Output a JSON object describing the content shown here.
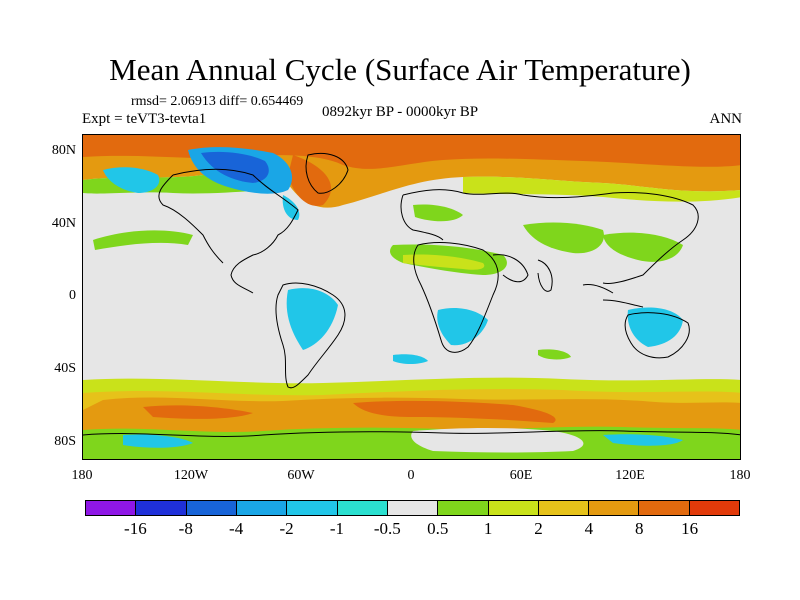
{
  "header": {
    "title": "Mean Annual Cycle (Surface Air Temperature)",
    "stats": "rmsd= 2.06913 diff= 0.654469",
    "experiment": "Expt = teVT3-tevta1",
    "period": "0892kyr BP - 0000kyr BP",
    "season": "ANN"
  },
  "map": {
    "projection": "cylindrical equidistant",
    "lon_range": [
      -180,
      180
    ],
    "lat_range": [
      -90,
      90
    ],
    "ocean_land_neutral_color": "#e6e6e6",
    "coastline_color": "#000000",
    "lat_labels": [
      "80N",
      "40N",
      "0",
      "40S",
      "80S"
    ],
    "lon_labels": [
      "180",
      "120W",
      "60W",
      "0",
      "60E",
      "120E",
      "180"
    ]
  },
  "colorbar": {
    "colors": [
      "#8f17e6",
      "#1f30d9",
      "#1864d8",
      "#1aa6e6",
      "#21c6e8",
      "#2be0d0",
      "#e6e6e6",
      "#7fd61c",
      "#c9e21a",
      "#e6c21a",
      "#e49a10",
      "#e26a0e",
      "#e23a0a"
    ],
    "labels": [
      "-16",
      "-8",
      "-4",
      "-2",
      "-1",
      "-0.5",
      "0.5",
      "1",
      "2",
      "4",
      "8",
      "16"
    ]
  }
}
